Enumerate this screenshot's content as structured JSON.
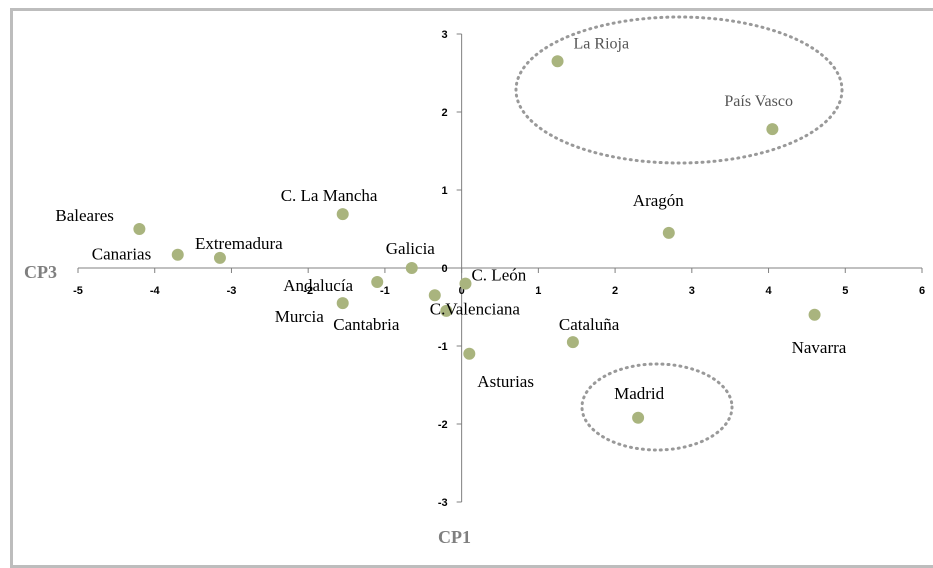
{
  "chart_data": {
    "type": "scatter",
    "title": "",
    "xlabel": "CP1",
    "ylabel": "CP3",
    "xlim": [
      -5,
      6
    ],
    "ylim": [
      -3,
      3
    ],
    "xticks": [
      -5,
      -4,
      -3,
      -2,
      -1,
      0,
      1,
      2,
      3,
      4,
      5,
      6
    ],
    "yticks": [
      -3,
      -2,
      -1,
      0,
      1,
      2,
      3
    ],
    "grid": false,
    "marker_color": "#a9b47e",
    "highlight_color": "#999999",
    "points": [
      {
        "label": "La Rioja",
        "x": 1.25,
        "y": 2.65
      },
      {
        "label": "País Vasco",
        "x": 4.05,
        "y": 1.78
      },
      {
        "label": "Aragón",
        "x": 2.7,
        "y": 0.45
      },
      {
        "label": "Baleares",
        "x": -4.2,
        "y": 0.5
      },
      {
        "label": "C. La Mancha",
        "x": -1.55,
        "y": 0.69
      },
      {
        "label": "Canarias",
        "x": -3.7,
        "y": 0.17
      },
      {
        "label": "Extremadura",
        "x": -3.15,
        "y": 0.13
      },
      {
        "label": "Galicia",
        "x": -0.65,
        "y": 0.0
      },
      {
        "label": "Andalucía",
        "x": -1.1,
        "y": -0.18
      },
      {
        "label": "C. León",
        "x": 0.05,
        "y": -0.2
      },
      {
        "label": "C.Valenciana",
        "x": -0.35,
        "y": -0.35
      },
      {
        "label": "Murcia",
        "x": -1.55,
        "y": -0.45
      },
      {
        "label": "Cantabria",
        "x": -0.2,
        "y": -0.55
      },
      {
        "label": "Navarra",
        "x": 4.6,
        "y": -0.6
      },
      {
        "label": "Cataluña",
        "x": 1.45,
        "y": -0.95
      },
      {
        "label": "Asturias",
        "x": 0.1,
        "y": -1.1
      },
      {
        "label": "Madrid",
        "x": 2.3,
        "y": -1.92
      }
    ],
    "highlight_groups": [
      {
        "members": [
          "La Rioja",
          "País Vasco"
        ],
        "style": "dotted-ellipse"
      },
      {
        "members": [
          "Madrid"
        ],
        "style": "dotted-ellipse"
      }
    ]
  }
}
